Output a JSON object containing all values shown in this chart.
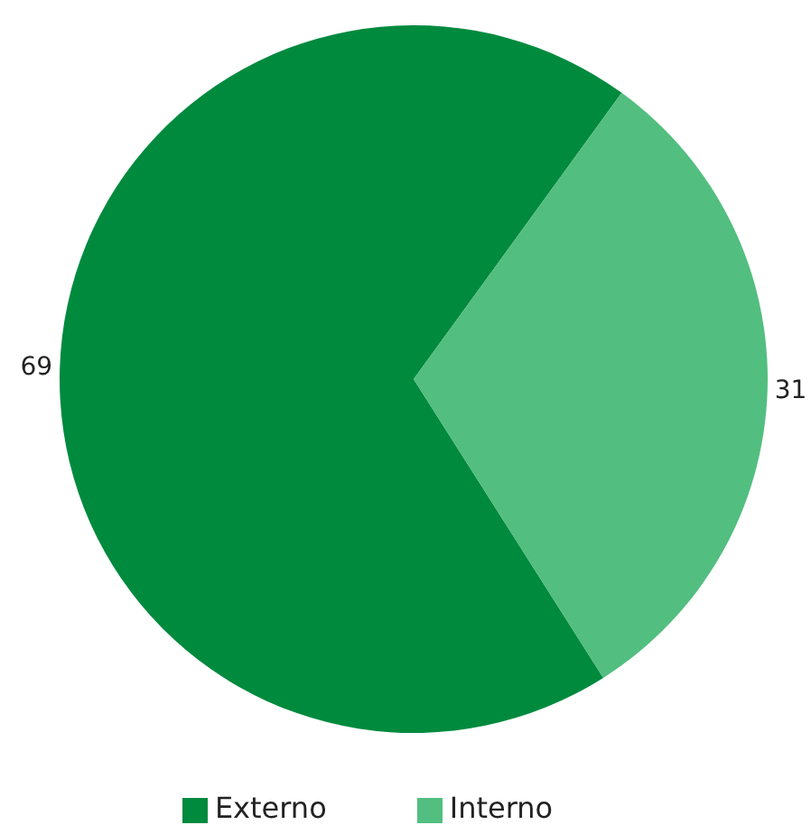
{
  "chart_data": {
    "type": "pie",
    "categories": [
      "Externo",
      "Interno"
    ],
    "values": [
      69,
      31
    ],
    "colors": [
      "#008a3e",
      "#52be80"
    ],
    "data_labels": true,
    "legend": "bottom"
  }
}
